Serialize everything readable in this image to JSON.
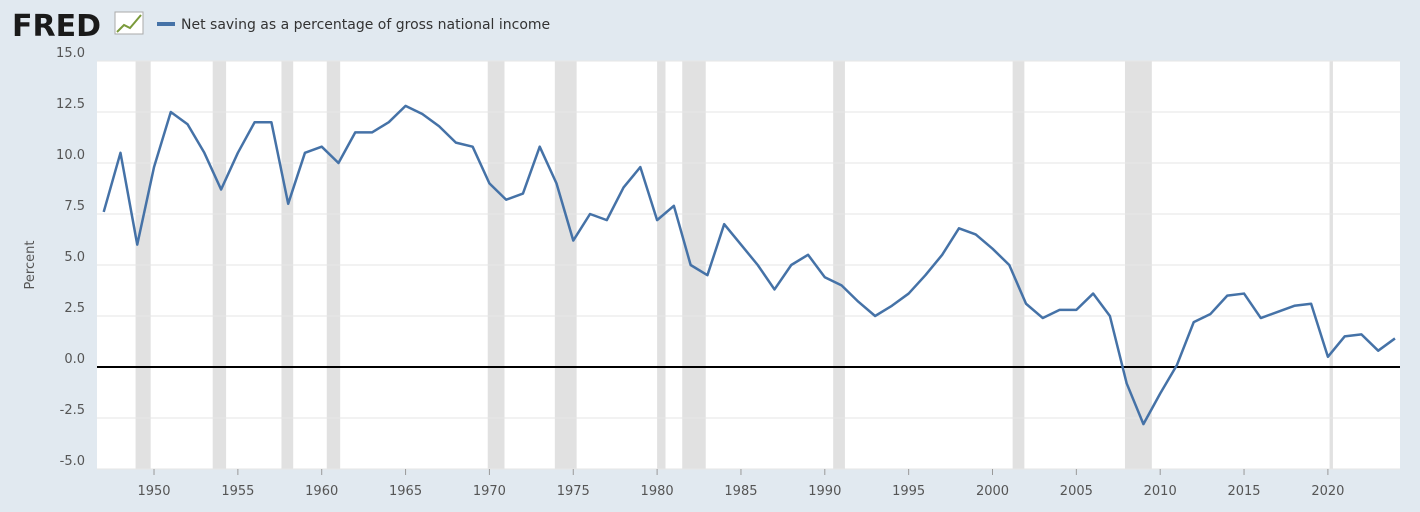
{
  "chart_data": {
    "type": "line",
    "brand": "FRED",
    "ylabel": "Percent",
    "series": [
      {
        "name": "Net saving as a percentage of gross national income",
        "color": "#4572a7",
        "values": [
          7.6,
          10.5,
          6.0,
          9.8,
          12.5,
          11.9,
          10.5,
          8.7,
          10.5,
          12.0,
          12.0,
          8.0,
          10.5,
          10.8,
          10.0,
          11.5,
          11.5,
          12.0,
          12.8,
          12.4,
          11.8,
          11.0,
          10.8,
          9.0,
          8.2,
          8.5,
          10.8,
          9.0,
          6.2,
          7.5,
          7.2,
          8.8,
          9.8,
          7.2,
          7.9,
          5.0,
          4.5,
          7.0,
          6.0,
          5.0,
          3.8,
          5.0,
          5.5,
          4.4,
          4.0,
          3.2,
          2.5,
          3.0,
          3.6,
          4.5,
          5.5,
          6.8,
          6.5,
          5.8,
          5.0,
          3.1,
          2.4,
          2.8,
          2.8,
          3.6,
          2.5,
          -0.8,
          -2.8,
          -1.3,
          0.1,
          2.2,
          2.6,
          3.5,
          3.6,
          2.4,
          2.7,
          3.0,
          3.1,
          0.5,
          1.5,
          1.6,
          0.8,
          1.4
        ]
      }
    ],
    "x": [
      1947,
      1948,
      1949,
      1950,
      1951,
      1952,
      1953,
      1954,
      1955,
      1956,
      1957,
      1958,
      1959,
      1960,
      1961,
      1962,
      1963,
      1964,
      1965,
      1966,
      1967,
      1968,
      1969,
      1970,
      1971,
      1972,
      1973,
      1974,
      1975,
      1976,
      1977,
      1978,
      1979,
      1980,
      1981,
      1982,
      1983,
      1984,
      1985,
      1986,
      1987,
      1988,
      1989,
      1990,
      1991,
      1992,
      1993,
      1994,
      1995,
      1996,
      1997,
      1998,
      1999,
      2000,
      2001,
      2002,
      2003,
      2004,
      2005,
      2006,
      2007,
      2008,
      2009,
      2010,
      2011,
      2012,
      2013,
      2014,
      2015,
      2016,
      2017,
      2018,
      2019,
      2020,
      2021,
      2022,
      2023,
      2024
    ],
    "recessions": [
      [
        1948.9,
        1949.8
      ],
      [
        1953.5,
        1954.3
      ],
      [
        1957.6,
        1958.3
      ],
      [
        1960.3,
        1961.1
      ],
      [
        1969.9,
        1970.9
      ],
      [
        1973.9,
        1975.2
      ],
      [
        1980.0,
        1980.5
      ],
      [
        1981.5,
        1982.9
      ],
      [
        1990.5,
        1991.2
      ],
      [
        2001.2,
        2001.9
      ],
      [
        2007.9,
        2009.5
      ],
      [
        2020.1,
        2020.3
      ]
    ],
    "xlim": [
      1946.6,
      2024.3
    ],
    "xticks": [
      1950,
      1955,
      1960,
      1965,
      1970,
      1975,
      1980,
      1985,
      1990,
      1995,
      2000,
      2005,
      2010,
      2015,
      2020
    ],
    "ylim": [
      -5,
      15
    ],
    "yticks": [
      {
        "value": -5,
        "label": "-5.0"
      },
      {
        "value": -2.5,
        "label": "-2.5"
      },
      {
        "value": 0,
        "label": "0.0"
      },
      {
        "value": 2.5,
        "label": "2.5"
      },
      {
        "value": 5,
        "label": "5.0"
      },
      {
        "value": 7.5,
        "label": "7.5"
      },
      {
        "value": 10,
        "label": "10.0"
      },
      {
        "value": 12.5,
        "label": "12.5"
      },
      {
        "value": 15,
        "label": "15.0"
      }
    ],
    "grid": true
  }
}
